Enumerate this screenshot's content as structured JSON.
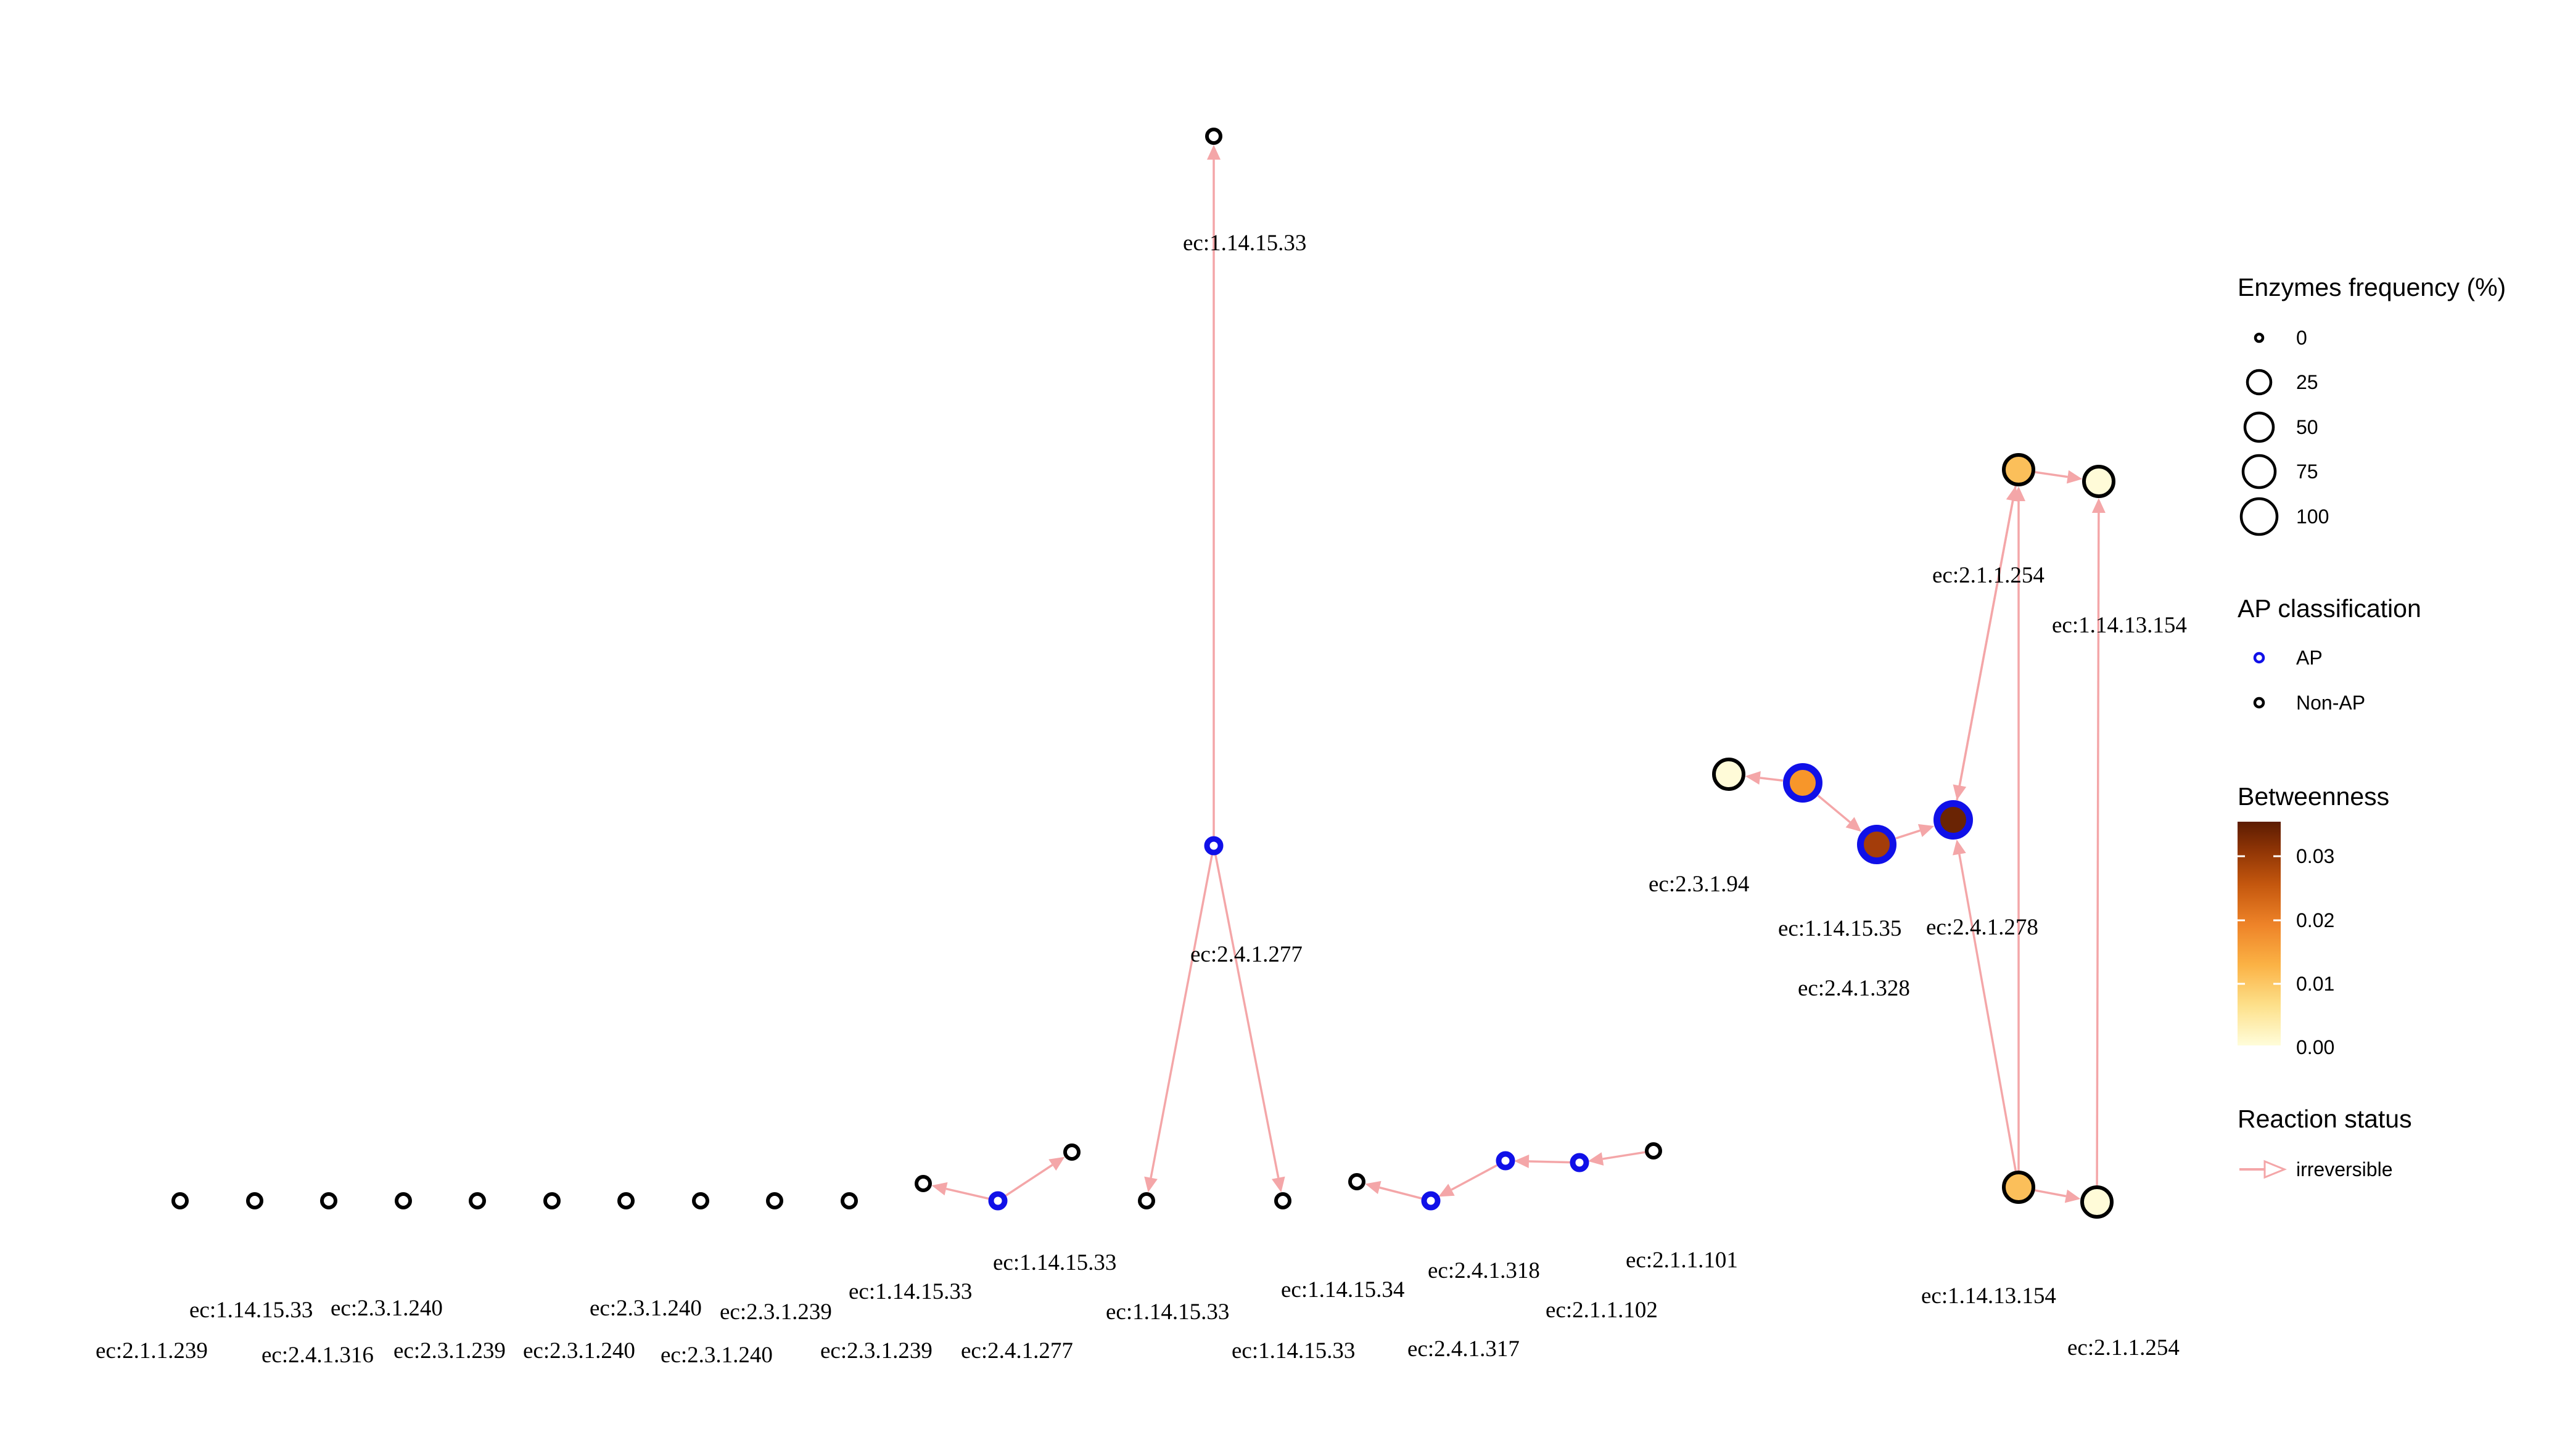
{
  "colors": {
    "edge": "#f4a6a8",
    "ap_stroke": "#1010e8",
    "non_ap_stroke": "#000000",
    "betweenness_gradient": [
      "#fffdda",
      "#fde08a",
      "#fbb245",
      "#ee8328",
      "#c4570e",
      "#8c3305",
      "#5c1c02"
    ]
  },
  "nodes": [
    {
      "id": "n1",
      "ap": false,
      "frequency": 0,
      "fill": "#ffffff"
    },
    {
      "id": "n2",
      "ap": false,
      "frequency": 0,
      "fill": "#ffffff"
    },
    {
      "id": "n3",
      "ap": false,
      "frequency": 0,
      "fill": "#ffffff"
    },
    {
      "id": "n4",
      "ap": false,
      "frequency": 0,
      "fill": "#ffffff"
    },
    {
      "id": "n5",
      "ap": false,
      "frequency": 0,
      "fill": "#ffffff"
    },
    {
      "id": "n6",
      "ap": false,
      "frequency": 0,
      "fill": "#ffffff"
    },
    {
      "id": "n7",
      "ap": false,
      "frequency": 0,
      "fill": "#ffffff"
    },
    {
      "id": "n8",
      "ap": false,
      "frequency": 0,
      "fill": "#ffffff"
    },
    {
      "id": "n9",
      "ap": false,
      "frequency": 0,
      "fill": "#ffffff"
    },
    {
      "id": "n10",
      "ap": false,
      "frequency": 0,
      "fill": "#ffffff"
    },
    {
      "id": "n11",
      "ap": false,
      "frequency": 0,
      "fill": "#ffffff"
    },
    {
      "id": "n12",
      "ap": true,
      "frequency": 0,
      "fill": "#ffffff"
    },
    {
      "id": "n13",
      "ap": false,
      "frequency": 0,
      "fill": "#ffffff"
    },
    {
      "id": "n14",
      "ap": true,
      "frequency": 0,
      "fill": "#ffffff"
    },
    {
      "id": "n15",
      "ap": false,
      "frequency": 0,
      "fill": "#ffffff"
    },
    {
      "id": "n16",
      "ap": false,
      "frequency": 0,
      "fill": "#ffffff"
    },
    {
      "id": "n17",
      "ap": false,
      "frequency": 0,
      "fill": "#ffffff"
    },
    {
      "id": "n18",
      "ap": false,
      "frequency": 0,
      "fill": "#ffffff"
    },
    {
      "id": "n19",
      "ap": true,
      "frequency": 0,
      "fill": "#ffffff"
    },
    {
      "id": "n20",
      "ap": true,
      "frequency": 0,
      "fill": "#ffffff"
    },
    {
      "id": "n21",
      "ap": true,
      "frequency": 0,
      "fill": "#ffffff"
    },
    {
      "id": "n22",
      "ap": false,
      "frequency": 0,
      "fill": "#ffffff"
    },
    {
      "id": "n23",
      "ap": false,
      "frequency": 50,
      "fill": "#fffbd8"
    },
    {
      "id": "n24",
      "ap": true,
      "frequency": 75,
      "fill": "#f7962a"
    },
    {
      "id": "n25",
      "ap": true,
      "frequency": 75,
      "fill": "#a43d0a"
    },
    {
      "id": "n26",
      "ap": true,
      "frequency": 75,
      "fill": "#6a2404"
    },
    {
      "id": "n27",
      "ap": false,
      "frequency": 50,
      "fill": "#fbbf5a"
    },
    {
      "id": "n28",
      "ap": false,
      "frequency": 50,
      "fill": "#fffbd8"
    },
    {
      "id": "n29",
      "ap": false,
      "frequency": 50,
      "fill": "#fbbf5a"
    },
    {
      "id": "n30",
      "ap": false,
      "frequency": 50,
      "fill": "#fffbd8"
    }
  ],
  "edges": [
    {
      "from": "n12",
      "to": "n11"
    },
    {
      "from": "n12",
      "to": "n13"
    },
    {
      "from": "n14",
      "to": "n15"
    },
    {
      "from": "n14",
      "to": "n16"
    },
    {
      "from": "n14",
      "to": "n17"
    },
    {
      "from": "n19",
      "to": "n18"
    },
    {
      "from": "n20",
      "to": "n19"
    },
    {
      "from": "n21",
      "to": "n20"
    },
    {
      "from": "n22",
      "to": "n21"
    },
    {
      "from": "n24",
      "to": "n23"
    },
    {
      "from": "n24",
      "to": "n25"
    },
    {
      "from": "n25",
      "to": "n26"
    },
    {
      "from": "n26",
      "to": "n27"
    },
    {
      "from": "n27",
      "to": "n26"
    },
    {
      "from": "n27",
      "to": "n28"
    },
    {
      "from": "n29",
      "to": "n26"
    },
    {
      "from": "n29",
      "to": "n27"
    },
    {
      "from": "n29",
      "to": "n30"
    },
    {
      "from": "n30",
      "to": "n28"
    }
  ],
  "edge_labels": [
    "ec:1.14.15.33",
    "ec:2.4.1.277",
    "ec:2.1.1.254",
    "ec:1.14.13.154",
    "ec:2.3.1.94",
    "ec:1.14.15.35",
    "ec:2.4.1.278",
    "ec:2.4.1.328",
    "ec:1.14.15.33",
    "ec:2.3.1.240",
    "ec:2.3.1.240",
    "ec:2.3.1.239",
    "ec:2.1.1.239",
    "ec:2.4.1.316",
    "ec:2.3.1.239",
    "ec:2.3.1.240",
    "ec:2.3.1.240",
    "ec:1.14.15.33",
    "ec:2.3.1.239",
    "ec:1.14.15.33",
    "ec:2.4.1.277",
    "ec:1.14.15.33",
    "ec:1.14.15.34",
    "ec:1.14.15.33",
    "ec:2.4.1.318",
    "ec:2.4.1.317",
    "ec:2.1.1.101",
    "ec:2.1.1.102",
    "ec:1.14.13.154",
    "ec:2.1.1.254"
  ],
  "legend": {
    "frequency": {
      "title": "Enzymes frequency (%)",
      "items": [
        {
          "label": "0",
          "value": 0
        },
        {
          "label": "25",
          "value": 25
        },
        {
          "label": "50",
          "value": 50
        },
        {
          "label": "75",
          "value": 75
        },
        {
          "label": "100",
          "value": 100
        }
      ]
    },
    "ap": {
      "title": "AP classification",
      "items": [
        {
          "label": "AP",
          "stroke": "#1010e8"
        },
        {
          "label": "Non-AP",
          "stroke": "#000000"
        }
      ]
    },
    "betweenness": {
      "title": "Betweenness",
      "ticks": [
        {
          "label": "0.03",
          "value": 0.03
        },
        {
          "label": "0.02",
          "value": 0.02
        },
        {
          "label": "0.01",
          "value": 0.01
        },
        {
          "label": "0.00",
          "value": 0.0
        }
      ]
    },
    "reaction": {
      "title": "Reaction status",
      "items": [
        {
          "label": "irreversible"
        }
      ]
    }
  }
}
